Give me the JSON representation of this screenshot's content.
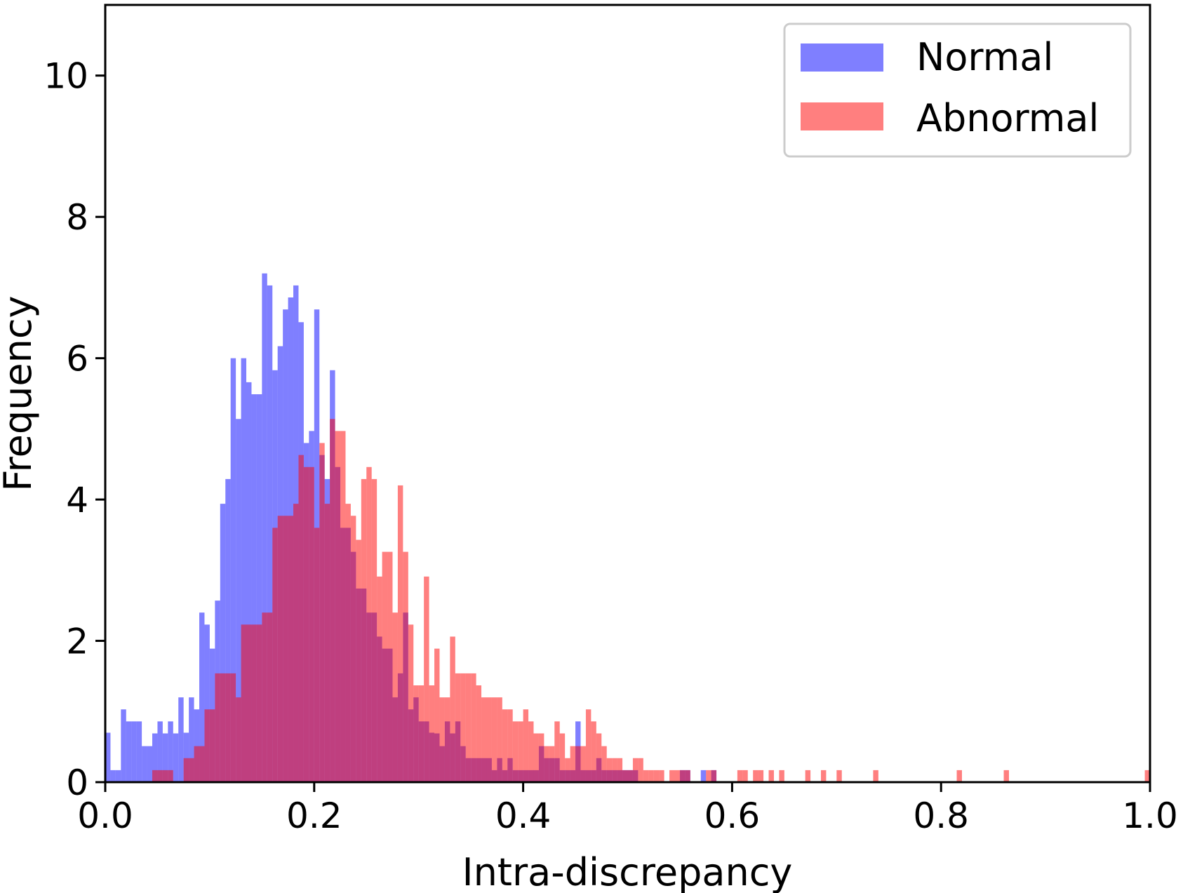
{
  "chart_data": {
    "type": "bar",
    "subtype": "overlapping-histogram",
    "title": "",
    "xlabel": "Intra-discrepancy",
    "ylabel": "Frequency",
    "xlim": [
      0.0,
      1.0
    ],
    "ylim": [
      0,
      11
    ],
    "grid": false,
    "legend_position": "top-right",
    "x_ticks": [
      "0.0",
      "0.2",
      "0.4",
      "0.6",
      "0.8",
      "1.0"
    ],
    "y_ticks": [
      "0",
      "2",
      "4",
      "6",
      "8",
      "10"
    ],
    "bin_width": 0.005,
    "series": [
      {
        "name": "Normal",
        "color": "#0000ff",
        "opacity": 0.5,
        "bins": [
          [
            0.0,
            0.7
          ],
          [
            0.005,
            0.17
          ],
          [
            0.01,
            0.17
          ],
          [
            0.015,
            1.03
          ],
          [
            0.02,
            0.86
          ],
          [
            0.025,
            0.86
          ],
          [
            0.03,
            0.86
          ],
          [
            0.035,
            0.51
          ],
          [
            0.04,
            0.51
          ],
          [
            0.045,
            0.69
          ],
          [
            0.05,
            0.86
          ],
          [
            0.055,
            0.69
          ],
          [
            0.06,
            0.86
          ],
          [
            0.065,
            0.69
          ],
          [
            0.07,
            1.2
          ],
          [
            0.075,
            0.7
          ],
          [
            0.08,
            1.2
          ],
          [
            0.085,
            1.03
          ],
          [
            0.09,
            2.4
          ],
          [
            0.095,
            2.23
          ],
          [
            0.1,
            1.89
          ],
          [
            0.105,
            2.57
          ],
          [
            0.11,
            3.94
          ],
          [
            0.115,
            4.29
          ],
          [
            0.12,
            6.0
          ],
          [
            0.125,
            5.14
          ],
          [
            0.13,
            6.0
          ],
          [
            0.135,
            5.66
          ],
          [
            0.14,
            5.49
          ],
          [
            0.145,
            5.49
          ],
          [
            0.15,
            7.2
          ],
          [
            0.155,
            7.03
          ],
          [
            0.16,
            5.83
          ],
          [
            0.165,
            6.17
          ],
          [
            0.17,
            6.69
          ],
          [
            0.175,
            6.86
          ],
          [
            0.18,
            7.03
          ],
          [
            0.185,
            6.51
          ],
          [
            0.19,
            4.8
          ],
          [
            0.195,
            4.97
          ],
          [
            0.2,
            6.69
          ],
          [
            0.205,
            4.63
          ],
          [
            0.21,
            4.29
          ],
          [
            0.215,
            5.83
          ],
          [
            0.22,
            4.46
          ],
          [
            0.225,
            3.6
          ],
          [
            0.23,
            3.6
          ],
          [
            0.235,
            3.26
          ],
          [
            0.24,
            2.74
          ],
          [
            0.245,
            2.74
          ],
          [
            0.25,
            2.4
          ],
          [
            0.255,
            2.4
          ],
          [
            0.26,
            2.06
          ],
          [
            0.265,
            1.89
          ],
          [
            0.27,
            1.89
          ],
          [
            0.275,
            1.2
          ],
          [
            0.28,
            1.54
          ],
          [
            0.285,
            2.4
          ],
          [
            0.29,
            1.03
          ],
          [
            0.295,
            1.2
          ],
          [
            0.3,
            0.86
          ],
          [
            0.305,
            0.86
          ],
          [
            0.31,
            0.7
          ],
          [
            0.315,
            0.69
          ],
          [
            0.32,
            0.51
          ],
          [
            0.325,
            0.86
          ],
          [
            0.33,
            0.69
          ],
          [
            0.335,
            0.86
          ],
          [
            0.34,
            0.51
          ],
          [
            0.345,
            0.34
          ],
          [
            0.35,
            0.34
          ],
          [
            0.355,
            0.34
          ],
          [
            0.36,
            0.34
          ],
          [
            0.365,
            0.34
          ],
          [
            0.37,
            0.17
          ],
          [
            0.375,
            0.34
          ],
          [
            0.38,
            0.17
          ],
          [
            0.385,
            0.34
          ],
          [
            0.39,
            0.17
          ],
          [
            0.395,
            0.17
          ],
          [
            0.4,
            0.17
          ],
          [
            0.405,
            0.17
          ],
          [
            0.41,
            0.17
          ],
          [
            0.415,
            0.51
          ],
          [
            0.42,
            0.34
          ],
          [
            0.425,
            0.34
          ],
          [
            0.43,
            0.34
          ],
          [
            0.435,
            0.17
          ],
          [
            0.44,
            0.17
          ],
          [
            0.445,
            0.17
          ],
          [
            0.45,
            0.86
          ],
          [
            0.455,
            0.17
          ],
          [
            0.46,
            0.17
          ],
          [
            0.465,
            0.17
          ],
          [
            0.47,
            0.34
          ],
          [
            0.475,
            0.17
          ],
          [
            0.48,
            0.17
          ],
          [
            0.485,
            0.17
          ],
          [
            0.49,
            0.17
          ],
          [
            0.495,
            0.17
          ],
          [
            0.5,
            0.17
          ],
          [
            0.505,
            0.17
          ],
          [
            0.55,
            0.17
          ],
          [
            0.555,
            0.17
          ],
          [
            0.57,
            0.17
          ],
          [
            0.58,
            0.17
          ]
        ]
      },
      {
        "name": "Abnormal",
        "color": "#ff0000",
        "opacity": 0.5,
        "bins": [
          [
            0.045,
            0.17
          ],
          [
            0.05,
            0.17
          ],
          [
            0.055,
            0.17
          ],
          [
            0.06,
            0.17
          ],
          [
            0.075,
            0.34
          ],
          [
            0.08,
            0.34
          ],
          [
            0.085,
            0.51
          ],
          [
            0.09,
            0.51
          ],
          [
            0.095,
            1.03
          ],
          [
            0.1,
            1.03
          ],
          [
            0.105,
            1.54
          ],
          [
            0.11,
            1.54
          ],
          [
            0.115,
            1.54
          ],
          [
            0.12,
            1.54
          ],
          [
            0.125,
            1.2
          ],
          [
            0.13,
            2.23
          ],
          [
            0.135,
            2.23
          ],
          [
            0.14,
            2.23
          ],
          [
            0.145,
            2.23
          ],
          [
            0.15,
            2.4
          ],
          [
            0.155,
            2.4
          ],
          [
            0.16,
            3.6
          ],
          [
            0.165,
            3.77
          ],
          [
            0.17,
            3.77
          ],
          [
            0.175,
            3.77
          ],
          [
            0.18,
            3.94
          ],
          [
            0.185,
            4.63
          ],
          [
            0.19,
            4.46
          ],
          [
            0.195,
            4.46
          ],
          [
            0.2,
            3.6
          ],
          [
            0.205,
            4.8
          ],
          [
            0.21,
            3.94
          ],
          [
            0.215,
            5.14
          ],
          [
            0.22,
            4.97
          ],
          [
            0.225,
            4.97
          ],
          [
            0.23,
            3.94
          ],
          [
            0.235,
            3.77
          ],
          [
            0.24,
            3.43
          ],
          [
            0.245,
            4.29
          ],
          [
            0.25,
            4.46
          ],
          [
            0.255,
            4.29
          ],
          [
            0.26,
            2.91
          ],
          [
            0.265,
            3.26
          ],
          [
            0.27,
            3.26
          ],
          [
            0.275,
            2.4
          ],
          [
            0.28,
            4.2
          ],
          [
            0.285,
            3.26
          ],
          [
            0.29,
            2.23
          ],
          [
            0.295,
            1.37
          ],
          [
            0.3,
            1.37
          ],
          [
            0.305,
            2.91
          ],
          [
            0.31,
            1.37
          ],
          [
            0.315,
            1.89
          ],
          [
            0.32,
            1.2
          ],
          [
            0.325,
            1.2
          ],
          [
            0.33,
            2.06
          ],
          [
            0.335,
            1.54
          ],
          [
            0.34,
            1.54
          ],
          [
            0.345,
            1.54
          ],
          [
            0.35,
            1.54
          ],
          [
            0.355,
            1.37
          ],
          [
            0.36,
            1.2
          ],
          [
            0.365,
            1.2
          ],
          [
            0.37,
            1.2
          ],
          [
            0.375,
            1.2
          ],
          [
            0.38,
            1.03
          ],
          [
            0.385,
            1.03
          ],
          [
            0.39,
            0.86
          ],
          [
            0.395,
            0.86
          ],
          [
            0.4,
            1.03
          ],
          [
            0.405,
            0.86
          ],
          [
            0.41,
            0.69
          ],
          [
            0.415,
            0.69
          ],
          [
            0.42,
            0.51
          ],
          [
            0.425,
            0.51
          ],
          [
            0.43,
            0.86
          ],
          [
            0.435,
            0.69
          ],
          [
            0.44,
            0.34
          ],
          [
            0.445,
            0.51
          ],
          [
            0.45,
            0.51
          ],
          [
            0.455,
            0.51
          ],
          [
            0.46,
            1.03
          ],
          [
            0.465,
            0.86
          ],
          [
            0.47,
            0.69
          ],
          [
            0.475,
            0.51
          ],
          [
            0.48,
            0.34
          ],
          [
            0.485,
            0.34
          ],
          [
            0.49,
            0.34
          ],
          [
            0.495,
            0.17
          ],
          [
            0.5,
            0.17
          ],
          [
            0.505,
            0.34
          ],
          [
            0.51,
            0.34
          ],
          [
            0.515,
            0.17
          ],
          [
            0.52,
            0.17
          ],
          [
            0.525,
            0.17
          ],
          [
            0.53,
            0.17
          ],
          [
            0.54,
            0.17
          ],
          [
            0.545,
            0.17
          ],
          [
            0.55,
            0.17
          ],
          [
            0.555,
            0.17
          ],
          [
            0.575,
            0.17
          ],
          [
            0.58,
            0.17
          ],
          [
            0.605,
            0.17
          ],
          [
            0.61,
            0.17
          ],
          [
            0.62,
            0.17
          ],
          [
            0.625,
            0.17
          ],
          [
            0.635,
            0.17
          ],
          [
            0.645,
            0.17
          ],
          [
            0.67,
            0.17
          ],
          [
            0.685,
            0.17
          ],
          [
            0.7,
            0.17
          ],
          [
            0.735,
            0.17
          ],
          [
            0.815,
            0.17
          ],
          [
            0.86,
            0.17
          ],
          [
            0.995,
            0.17
          ]
        ]
      }
    ]
  }
}
